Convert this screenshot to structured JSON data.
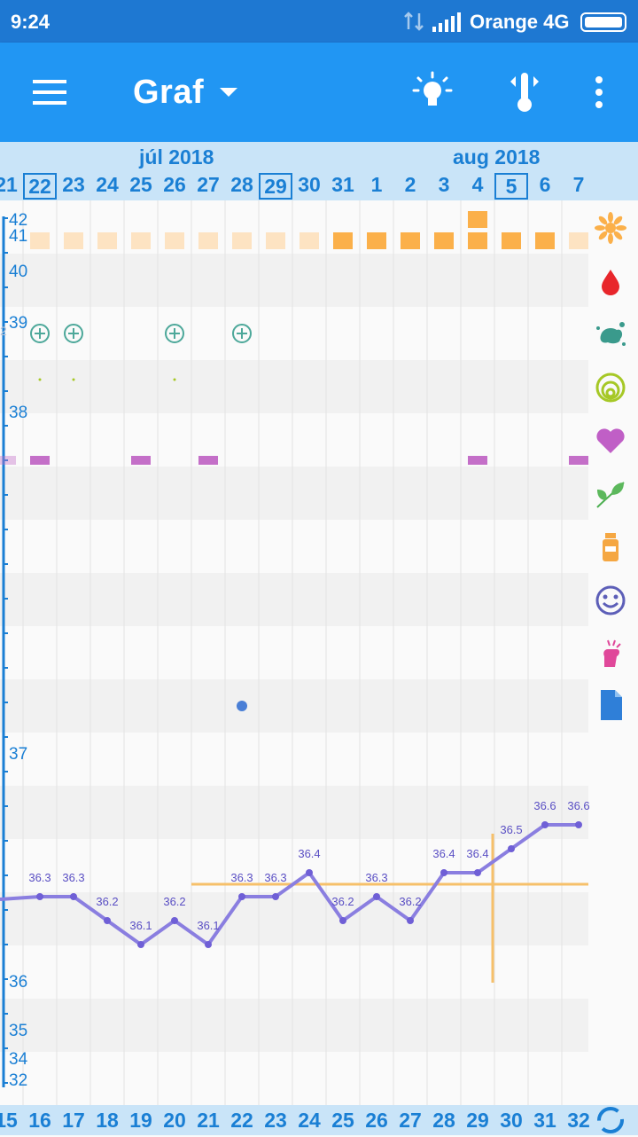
{
  "status_bar": {
    "time": "9:24",
    "carrier": "Orange 4G"
  },
  "app_bar": {
    "title": "Graf",
    "icons": [
      "menu-icon",
      "lightbulb-icon",
      "thermometer-icon",
      "more-vert-icon"
    ]
  },
  "months": [
    "júl 2018",
    "aug 2018"
  ],
  "top_days": [
    "21",
    "22",
    "23",
    "24",
    "25",
    "26",
    "27",
    "28",
    "29",
    "30",
    "31",
    "1",
    "2",
    "3",
    "4",
    "5",
    "6",
    "7"
  ],
  "boxed_days": [
    "22",
    "29",
    "5"
  ],
  "bottom_days": [
    "15",
    "16",
    "17",
    "18",
    "19",
    "20",
    "21",
    "22",
    "23",
    "24",
    "25",
    "26",
    "27",
    "28",
    "29",
    "30",
    "31",
    "32"
  ],
  "y_axis_labels": [
    "42",
    "41",
    "40",
    "39",
    "38",
    "37",
    "36",
    "35",
    "34",
    "32"
  ],
  "partial_left_label": "2",
  "temperature_labels": [
    "36.3",
    "36.3",
    "36.2",
    "36.1",
    "36.2",
    "36.1",
    "36.3",
    "36.3",
    "36.4",
    "36.2",
    "36.3",
    "36.2",
    "36.4",
    "36.4",
    "36.5",
    "36.6",
    "36.6"
  ],
  "chart_data": {
    "type": "line",
    "x": [
      "16",
      "17",
      "18",
      "19",
      "20",
      "21",
      "22",
      "23",
      "24",
      "25",
      "26",
      "27",
      "28",
      "29",
      "30",
      "31",
      "32"
    ],
    "series": [
      {
        "values": [
          36.3,
          36.3,
          36.2,
          36.1,
          36.2,
          36.1,
          36.3,
          36.3,
          36.4,
          36.2,
          36.3,
          36.2,
          36.4,
          36.4,
          36.5,
          36.6,
          36.6
        ]
      }
    ],
    "coverline": 36.3,
    "ovulation_day": "29",
    "colors": {
      "line": "#8a7ee0",
      "coverline": "#f6c06a",
      "point": "#6f5fd6"
    }
  },
  "side_icons": [
    "sun-flower-icon",
    "blood-drop-icon",
    "splash-icon",
    "rings-icon",
    "heart-icon",
    "leaf-icon",
    "medicine-bottle-icon",
    "smiley-icon",
    "hand-icon",
    "document-icon",
    "sync-icon"
  ],
  "colors": {
    "status_bar": "#1e78d2",
    "app_bar": "#2196f3",
    "timeline": "#c9e4f8",
    "period_light": "#fde3c2",
    "period_dark": "#fbb04a",
    "intercourse": "#c46fc8",
    "teal": "#4da89a"
  }
}
